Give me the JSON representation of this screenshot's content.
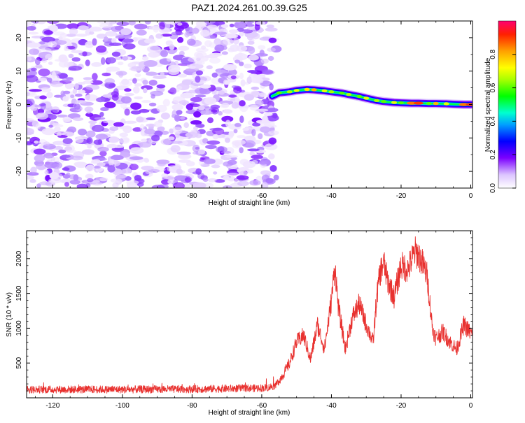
{
  "title": "PAZ1.2024.261.00.39.G25",
  "chart_data": [
    {
      "type": "heatmap",
      "xlabel": "Height of straight line (km)",
      "ylabel": "Frequency (Hz)",
      "xlim": [
        -127.5,
        0.5
      ],
      "ylim": [
        -25,
        25
      ],
      "xticks": [
        -120,
        -100,
        -80,
        -60,
        -40,
        -20,
        0
      ],
      "yticks": [
        -20,
        -10,
        0,
        10,
        20
      ],
      "grid": false,
      "colorbar": {
        "label": "Normalized spectral amplitude",
        "range": [
          0,
          1
        ],
        "ticks": [
          0.0,
          0.2,
          0.4,
          0.6,
          0.8
        ]
      },
      "ridge": {
        "x": [
          -57,
          -55,
          -52,
          -50,
          -47,
          -45,
          -42,
          -40,
          -37,
          -35,
          -32,
          -30,
          -27,
          -25,
          -22,
          -20,
          -17,
          -15,
          -12,
          -10,
          -7,
          -5,
          -2,
          0
        ],
        "y": [
          2.5,
          3.5,
          3.8,
          4.2,
          4.5,
          4.4,
          4.1,
          3.8,
          3.4,
          3.0,
          2.4,
          1.9,
          1.2,
          0.9,
          0.6,
          0.5,
          0.4,
          0.4,
          0.3,
          0.3,
          0.2,
          0.1,
          0.0,
          0.0
        ],
        "amplitude": [
          0.4,
          0.6,
          0.65,
          0.7,
          0.75,
          0.8,
          0.7,
          0.65,
          0.6,
          0.65,
          0.6,
          0.7,
          0.65,
          0.6,
          0.7,
          0.6,
          0.85,
          0.9,
          0.6,
          0.8,
          0.7,
          0.55,
          0.85,
          0.9
        ]
      },
      "noise_region": {
        "x": [
          -127.5,
          -57
        ],
        "y": [
          -25,
          25
        ],
        "amplitude_range": [
          0.15,
          0.3
        ]
      }
    },
    {
      "type": "line",
      "xlabel": "Height of straight line (km)",
      "ylabel": "SNR (10 * v/v)",
      "xlim": [
        -127.5,
        0.5
      ],
      "ylim": [
        0,
        2400
      ],
      "xticks": [
        -120,
        -100,
        -80,
        -60,
        -40,
        -20,
        0
      ],
      "yticks": [
        500,
        1000,
        1500,
        2000
      ],
      "grid": false,
      "series": [
        {
          "color": "#e8312f",
          "x": [
            -127.5,
            -100,
            -80,
            -60,
            -58,
            -56,
            -54,
            -52,
            -50,
            -48,
            -46,
            -44,
            -42,
            -40,
            -39,
            -38,
            -37,
            -36,
            -34,
            -32,
            -30,
            -28,
            -27,
            -26,
            -25,
            -24,
            -22,
            -20,
            -18,
            -16,
            -15,
            -14,
            -12.5,
            -12,
            -11,
            -10,
            -8,
            -6,
            -4,
            -2,
            0.5
          ],
          "y": [
            120,
            120,
            125,
            140,
            150,
            180,
            320,
            500,
            800,
            900,
            550,
            1050,
            700,
            1400,
            1900,
            1300,
            1000,
            700,
            1150,
            1350,
            1050,
            800,
            1450,
            1800,
            1950,
            1700,
            1450,
            1900,
            1850,
            2100,
            2050,
            1950,
            1750,
            1500,
            1000,
            850,
            950,
            800,
            700,
            1050,
            900
          ]
        }
      ]
    }
  ]
}
